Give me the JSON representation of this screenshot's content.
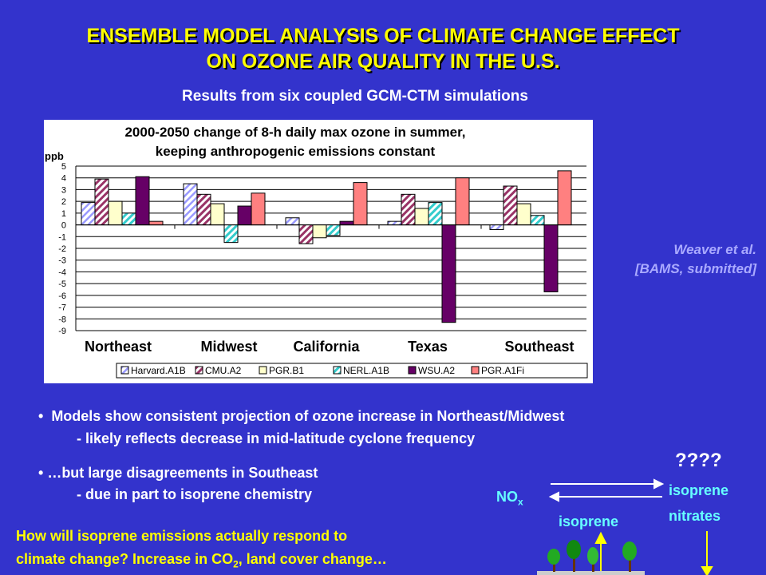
{
  "title": {
    "line1": "ENSEMBLE MODEL ANALYSIS OF CLIMATE CHANGE EFFECT",
    "line2": "ON OZONE AIR QUALITY IN THE U.S."
  },
  "subtitle": "Results from six coupled GCM-CTM  simulations",
  "citation": {
    "line1": "Weaver et al.",
    "line2": "[BAMS, submitted]"
  },
  "chart_data": {
    "type": "bar",
    "title_line1": "2000-2050 change of 8-h daily max ozone in summer,",
    "title_line2": "keeping anthropogenic emissions constant",
    "ylabel": "ppb",
    "ylim": [
      -9,
      5
    ],
    "yticks": [
      "5",
      "4",
      "3",
      "2",
      "1",
      "0",
      "-1",
      "-2",
      "-3",
      "-4",
      "-5",
      "-6",
      "-7",
      "-8",
      "-9"
    ],
    "grid": true,
    "legend_position": "bottom",
    "categories": [
      "Northeast",
      "Midwest",
      "California",
      "Texas",
      "Southeast"
    ],
    "series": [
      {
        "name": "Harvard.A1B",
        "values": [
          1.9,
          3.5,
          0.6,
          0.3,
          -0.4
        ],
        "color": "#ccccff",
        "pattern": "diag-light"
      },
      {
        "name": "CMU.A2",
        "values": [
          3.9,
          2.6,
          -1.6,
          2.6,
          3.3
        ],
        "color": "#993366",
        "pattern": "diag-dark"
      },
      {
        "name": "PGR.B1",
        "values": [
          2.0,
          1.8,
          -1.1,
          1.4,
          1.8
        ],
        "color": "#ffffcc",
        "pattern": "solid"
      },
      {
        "name": "NERL.A1B",
        "values": [
          1.0,
          -1.5,
          -0.9,
          1.9,
          0.8
        ],
        "color": "#ccffff",
        "pattern": "diag-cyan"
      },
      {
        "name": "WSU.A2",
        "values": [
          4.1,
          1.6,
          0.3,
          -8.3,
          -5.7
        ],
        "color": "#660066",
        "pattern": "solid"
      },
      {
        "name": "PGR.A1Fi",
        "values": [
          0.3,
          2.7,
          3.6,
          4.0,
          4.6
        ],
        "color": "#ff8080",
        "pattern": "solid"
      }
    ]
  },
  "bullets": [
    {
      "line1": "Models show consistent projection of ozone increase in Northeast/Midwest",
      "line2": "- likely reflects decrease in mid-latitude cyclone frequency"
    },
    {
      "line1": "…but large disagreements in Southeast",
      "line2": "- due in part to isoprene chemistry"
    }
  ],
  "question": {
    "line1": "How will isoprene emissions actually respond to",
    "line2_a": "climate change? Increase in CO",
    "line2_sub": "2",
    "line2_b": ", land cover change…"
  },
  "diagram": {
    "qmarks": "????",
    "nox": "NO",
    "nox_sub": "x",
    "isoprene": "isoprene",
    "nitrates_line1": "isoprene",
    "nitrates_line2": "nitrates"
  }
}
